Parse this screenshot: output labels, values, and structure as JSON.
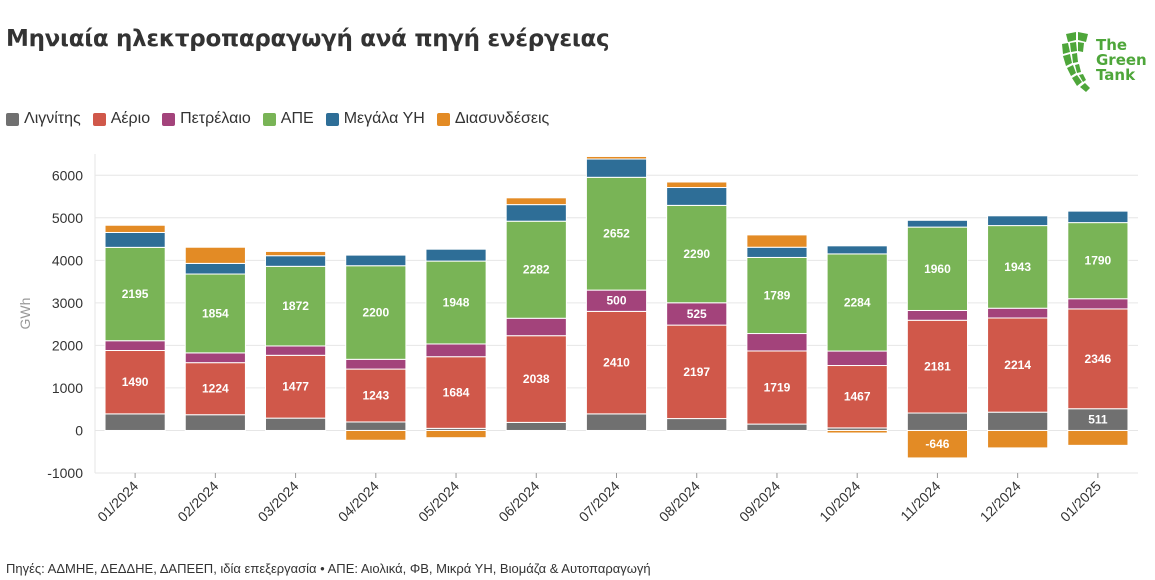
{
  "header": {
    "title": "Μηνιαία ηλεκτροπαραγωγή ανά πηγή ενέργειας"
  },
  "logo": {
    "line1": "The",
    "line2": "Green",
    "line3": "Tank"
  },
  "legend": [
    {
      "name": "Λιγνίτης",
      "color": "#707070"
    },
    {
      "name": "Αέριο",
      "color": "#d0584a"
    },
    {
      "name": "Πετρέλαιο",
      "color": "#a3437b"
    },
    {
      "name": "ΑΠΕ",
      "color": "#79b456"
    },
    {
      "name": "Μεγάλα ΥΗ",
      "color": "#2e6e97"
    },
    {
      "name": "Διασυνδέσεις",
      "color": "#e38b25"
    }
  ],
  "footer": {
    "source": "Πηγές: ΑΔΜΗΕ, ΔΕΔΔΗΕ, ΔΑΠΕΕΠ, ιδία επεξεργασία • ΑΠΕ: Αιολικά, ΦΒ, Μικρά ΥΗ, Βιομάζα & Αυτοπαραγωγή"
  },
  "chart_data": {
    "type": "bar",
    "stacked": true,
    "title": "Μηνιαία ηλεκτροπαραγωγή ανά πηγή ενέργειας",
    "xlabel": "",
    "ylabel": "GWh",
    "ylim": [
      -1000,
      6500
    ],
    "yticks": [
      -1000,
      0,
      1000,
      2000,
      3000,
      4000,
      5000,
      6000
    ],
    "grid": true,
    "legend_position": "top-left",
    "categories": [
      "01/2024",
      "02/2024",
      "03/2024",
      "04/2024",
      "05/2024",
      "06/2024",
      "07/2024",
      "08/2024",
      "09/2024",
      "10/2024",
      "11/2024",
      "12/2024",
      "01/2025"
    ],
    "series": [
      {
        "name": "Λιγνίτης",
        "color": "#707070",
        "values": [
          390,
          370,
          290,
          200,
          50,
          190,
          390,
          280,
          150,
          60,
          410,
          430,
          511
        ],
        "labels": [
          null,
          null,
          null,
          null,
          null,
          null,
          null,
          null,
          null,
          null,
          null,
          null,
          "511"
        ]
      },
      {
        "name": "Αέριο",
        "color": "#d0584a",
        "values": [
          1490,
          1224,
          1477,
          1243,
          1684,
          2038,
          2410,
          2197,
          1719,
          1467,
          2181,
          2214,
          2346
        ],
        "labels": [
          "1490",
          "1224",
          "1477",
          "1243",
          "1684",
          "2038",
          "2410",
          "2197",
          "1719",
          "1467",
          "2181",
          "2214",
          "2346"
        ]
      },
      {
        "name": "Πετρέλαιο",
        "color": "#a3437b",
        "values": [
          230,
          230,
          220,
          230,
          300,
          410,
          500,
          525,
          410,
          340,
          230,
          230,
          240
        ],
        "labels": [
          null,
          null,
          null,
          null,
          null,
          null,
          "500",
          "525",
          null,
          null,
          null,
          null,
          null
        ]
      },
      {
        "name": "ΑΠΕ",
        "color": "#79b456",
        "values": [
          2195,
          1854,
          1872,
          2200,
          1948,
          2282,
          2652,
          2290,
          1789,
          2284,
          1960,
          1943,
          1790
        ],
        "labels": [
          "2195",
          "1854",
          "1872",
          "2200",
          "1948",
          "2282",
          "2652",
          "2290",
          "1789",
          "2284",
          "1960",
          "1943",
          "1790"
        ]
      },
      {
        "name": "Μεγάλα ΥΗ",
        "color": "#2e6e97",
        "values": [
          350,
          250,
          250,
          250,
          280,
          390,
          430,
          420,
          240,
          190,
          160,
          230,
          270
        ],
        "labels": [
          null,
          null,
          null,
          null,
          null,
          null,
          null,
          null,
          null,
          null,
          null,
          null,
          null
        ]
      },
      {
        "name": "Διασυνδέσεις",
        "color": "#e38b25",
        "values": [
          170,
          380,
          100,
          -230,
          -170,
          160,
          60,
          130,
          290,
          -60,
          -646,
          -410,
          -350
        ],
        "labels": [
          null,
          null,
          null,
          null,
          null,
          null,
          null,
          null,
          null,
          null,
          "-646",
          null,
          null
        ]
      }
    ]
  }
}
